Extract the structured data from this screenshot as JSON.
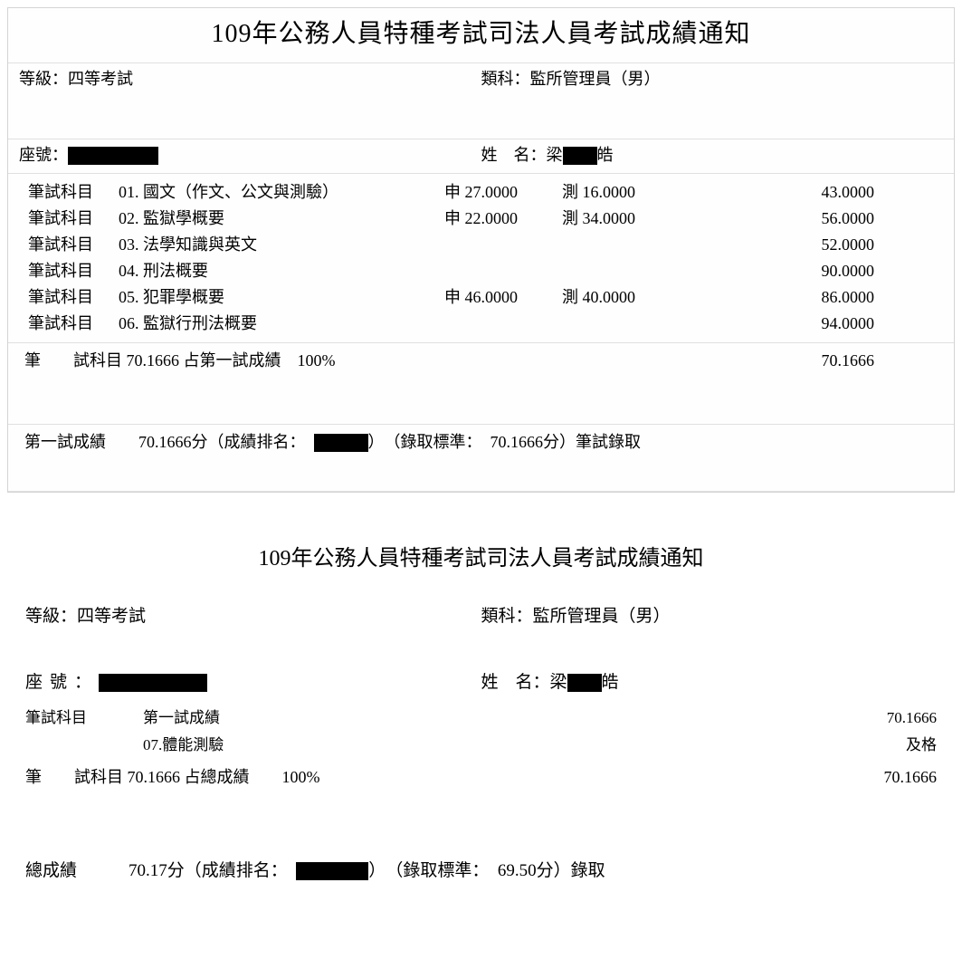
{
  "top": {
    "title": "109年公務人員特種考試司法人員考試成績通知",
    "grade_label": "等級：",
    "grade_value": "四等考試",
    "category_label": "類科：",
    "category_value": "監所管理員（男）",
    "seat_label": "座號：",
    "name_label": "姓　名：",
    "name_prefix": "梁",
    "name_suffix": "皓",
    "subjects": [
      {
        "label": "筆試科目",
        "no": "01.",
        "name": "國文（作文、公文與測驗）",
        "shen": "申 27.0000",
        "ce": "測 16.0000",
        "total": "43.0000"
      },
      {
        "label": "筆試科目",
        "no": "02.",
        "name": "監獄學概要",
        "shen": "申 22.0000",
        "ce": "測 34.0000",
        "total": "56.0000"
      },
      {
        "label": "筆試科目",
        "no": "03.",
        "name": "法學知識與英文",
        "shen": "",
        "ce": "",
        "total": "52.0000"
      },
      {
        "label": "筆試科目",
        "no": "04.",
        "name": "刑法概要",
        "shen": "",
        "ce": "",
        "total": "90.0000"
      },
      {
        "label": "筆試科目",
        "no": "05.",
        "name": "犯罪學概要",
        "shen": "申 46.0000",
        "ce": "測 40.0000",
        "total": "86.0000"
      },
      {
        "label": "筆試科目",
        "no": "06.",
        "name": "監獄行刑法概要",
        "shen": "",
        "ce": "",
        "total": "94.0000"
      }
    ],
    "summary_label": "筆　　試科目 ",
    "summary_score": "70.1666",
    "summary_pct_label": " 占第一試成績　",
    "summary_pct": "100%",
    "summary_right": "70.1666",
    "result_label": "第一試成績",
    "result_score": "　　70.1666分",
    "result_rank_open": "（成績排名：　",
    "result_rank_close": "）",
    "result_std_open": "（錄取標準：　",
    "result_std": "70.1666分",
    "result_std_close": "）",
    "result_pass": "筆試錄取"
  },
  "bottom": {
    "title": "109年公務人員特種考試司法人員考試成績通知",
    "grade_label": "等級：",
    "grade_value": "四等考試",
    "category_label": "類科：",
    "category_value": "監所管理員（男）",
    "seat_label_spaced": "座號：",
    "name_label": "姓　名：",
    "name_prefix": "梁",
    "name_suffix": "皓",
    "subjects": [
      {
        "label": "筆試科目",
        "name": "第一試成績",
        "value": "70.1666"
      },
      {
        "label": "",
        "name": "07.體能測驗",
        "value": "及格"
      }
    ],
    "total_label": "筆　　試科目 ",
    "total_score": "70.1666",
    "total_pct_label": " 占總成績　　",
    "total_pct": "100%",
    "total_right": "70.1666",
    "final_label": "總成績",
    "final_score": "　　　70.17分",
    "final_rank_open": "（成績排名：　",
    "final_rank_close": "）",
    "final_std_open": "（錄取標準：　",
    "final_std": "69.50分",
    "final_std_close": "）",
    "final_pass": "錄取"
  }
}
